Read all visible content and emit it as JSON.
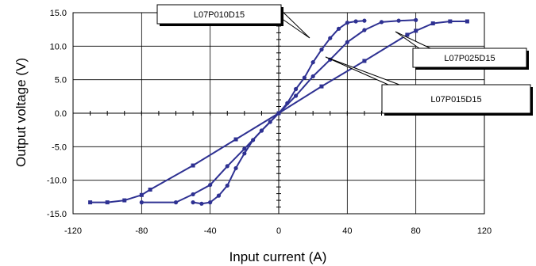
{
  "chart_data": {
    "type": "line",
    "xlabel": "Input current (A)",
    "ylabel": "Output voltage (V)",
    "xlim": [
      -120,
      120
    ],
    "ylim": [
      -15,
      15
    ],
    "x_ticks": [
      "-120",
      "-80",
      "-40",
      "0",
      "40",
      "80",
      "120"
    ],
    "y_ticks": [
      "15.0",
      "10.0",
      "5.0",
      "0.0",
      "-5.0",
      "-10.0",
      "-15.0"
    ],
    "grid": true,
    "series_color": "#2e3192",
    "series": [
      {
        "name": "L07P010D15",
        "marker": "circle",
        "x": [
          -50,
          -45,
          -40,
          -35,
          -30,
          -25,
          -20,
          -15,
          -10,
          -5,
          0,
          5,
          10,
          15,
          20,
          25,
          30,
          35,
          40,
          45,
          50
        ],
        "y": [
          -13.3,
          -13.5,
          -13.3,
          -12.3,
          -10.8,
          -8.2,
          -6.0,
          -4.0,
          -2.6,
          -1.3,
          0.0,
          1.5,
          3.6,
          5.3,
          7.6,
          9.5,
          11.2,
          12.6,
          13.5,
          13.7,
          13.8
        ]
      },
      {
        "name": "L07P015D15",
        "marker": "circle",
        "x": [
          -80,
          -60,
          -50,
          -40,
          -30,
          -20,
          -10,
          0,
          10,
          20,
          30,
          40,
          50,
          60,
          70,
          80
        ],
        "y": [
          -13.3,
          -13.3,
          -12.1,
          -10.7,
          -7.9,
          -5.3,
          -2.6,
          0.0,
          2.6,
          5.5,
          8.0,
          10.6,
          12.4,
          13.6,
          13.8,
          13.9
        ]
      },
      {
        "name": "L07P025D15",
        "marker": "square",
        "x": [
          -110,
          -100,
          -90,
          -80,
          -75,
          -50,
          -25,
          0,
          25,
          50,
          75,
          80,
          90,
          100,
          110
        ],
        "y": [
          -13.3,
          -13.3,
          -13.0,
          -12.2,
          -11.4,
          -7.8,
          -3.9,
          0.0,
          4.0,
          7.8,
          11.7,
          12.3,
          13.4,
          13.7,
          13.7
        ]
      }
    ],
    "annotations": [
      {
        "text": "L07P010D15"
      },
      {
        "text": "L07P025D15"
      },
      {
        "text": "L07P015D15"
      }
    ]
  }
}
